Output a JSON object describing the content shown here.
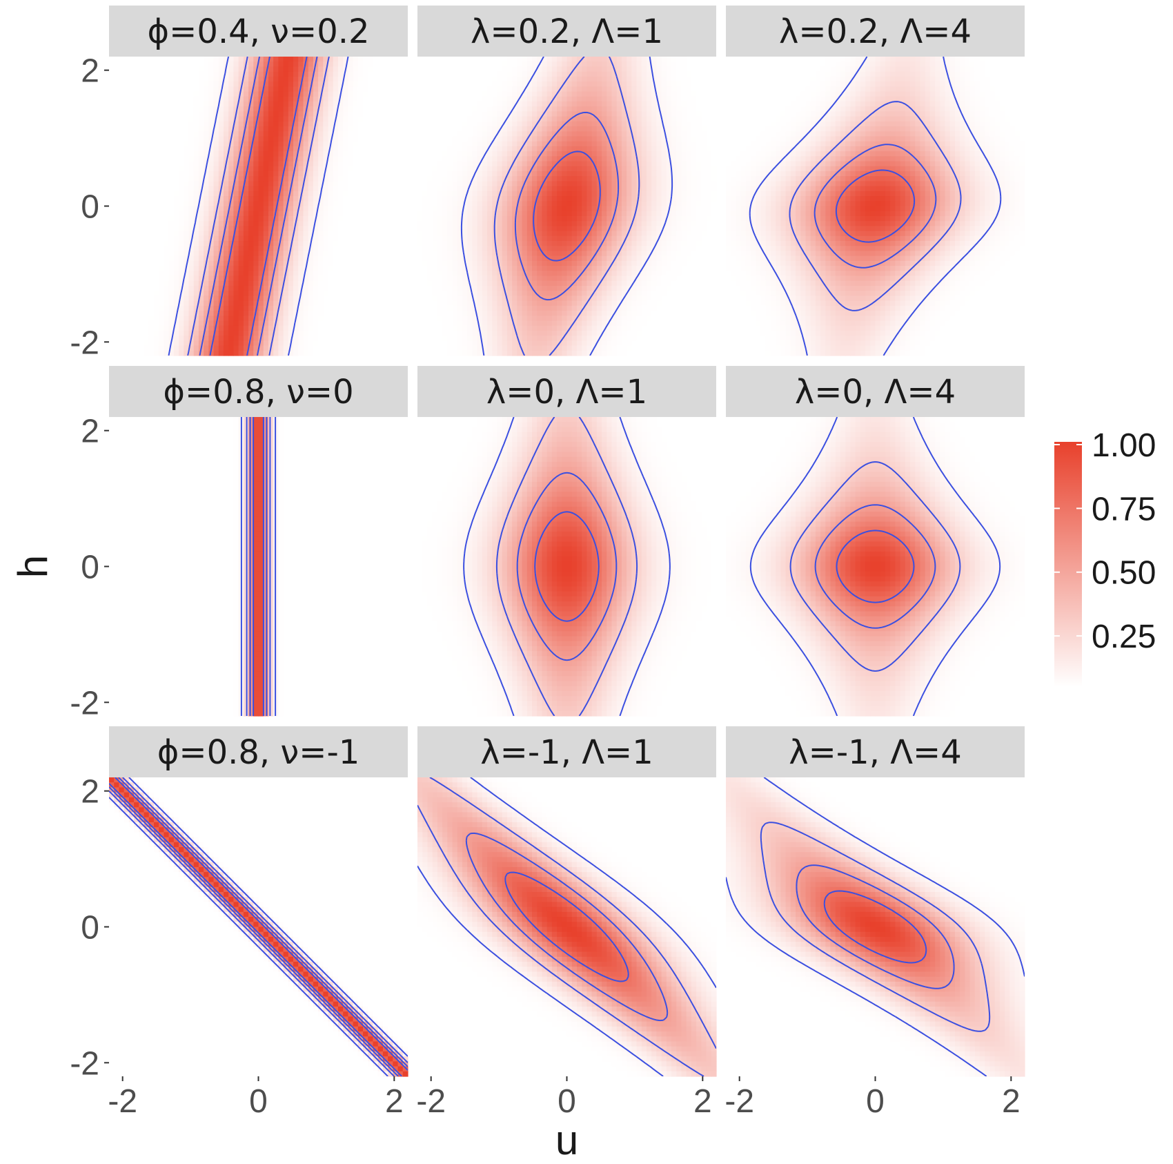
{
  "chart_data": {
    "type": "heatmap",
    "title": "",
    "xlabel": "u",
    "ylabel": "h",
    "xlim": [
      -2.2,
      2.2
    ],
    "ylim": [
      -2.2,
      2.2
    ],
    "x_ticks": [
      -2,
      0,
      2
    ],
    "x_tick_labels": [
      "-2",
      "0",
      "2"
    ],
    "y_ticks": [
      -2,
      0,
      2
    ],
    "y_tick_labels": [
      "-2",
      "0",
      "2"
    ],
    "contour_color": "#3b4fe0",
    "colors": {
      "low": "#ffffff",
      "high": "#e8412c",
      "strip_bg": "#d9d9d9",
      "strip_text": "#1a1a1a",
      "axis_text": "#4d4d4d"
    },
    "legend": {
      "position": "right",
      "ticks": [
        1.0,
        0.75,
        0.5,
        0.25
      ],
      "labels": [
        "1.00",
        "0.75",
        "0.50",
        "0.25"
      ]
    },
    "panels": [
      {
        "title": "ϕ=0.4, ν=0.2",
        "kind": "phi",
        "phi": 0.4,
        "nu": 0.2,
        "levels": [
          0.05,
          0.25,
          0.5,
          0.75
        ]
      },
      {
        "title": "λ=0.2, Λ=1",
        "kind": "lam",
        "lambda": 0.2,
        "Lambda": 1,
        "levels": [
          0.05,
          0.25,
          0.5,
          0.75
        ]
      },
      {
        "title": "λ=0.2, Λ=4",
        "kind": "lam",
        "lambda": 0.2,
        "Lambda": 4,
        "levels": [
          0.05,
          0.25,
          0.5,
          0.75
        ]
      },
      {
        "title": "ϕ=0.8, ν=0",
        "kind": "phi",
        "phi": 0.8,
        "nu": 0,
        "levels": [
          0.05,
          0.25,
          0.5,
          0.75
        ]
      },
      {
        "title": "λ=0, Λ=1",
        "kind": "lam",
        "lambda": 0,
        "Lambda": 1,
        "levels": [
          0.05,
          0.25,
          0.5,
          0.75
        ]
      },
      {
        "title": "λ=0, Λ=4",
        "kind": "lam",
        "lambda": 0,
        "Lambda": 4,
        "levels": [
          0.05,
          0.25,
          0.5,
          0.75
        ]
      },
      {
        "title": "ϕ=0.8, ν=-1",
        "kind": "phi",
        "phi": 0.8,
        "nu": -1,
        "levels": [
          0.05,
          0.25,
          0.5,
          0.75
        ]
      },
      {
        "title": "λ=-1, Λ=1",
        "kind": "lam",
        "lambda": -1,
        "Lambda": 1,
        "levels": [
          0.05,
          0.25,
          0.5,
          0.75
        ]
      },
      {
        "title": "λ=-1, Λ=4",
        "kind": "lam",
        "lambda": -1,
        "Lambda": 4,
        "levels": [
          0.05,
          0.25,
          0.5,
          0.75
        ]
      }
    ]
  }
}
